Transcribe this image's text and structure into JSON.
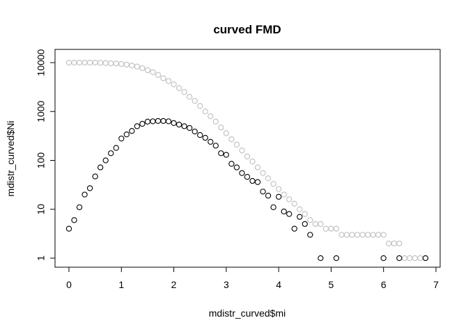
{
  "chart_data": {
    "type": "scatter",
    "title": "curved FMD",
    "xlabel": "mdistr_curved$mi",
    "ylabel": "mdistr_curved$Ni",
    "xlim": [
      -0.27,
      7.07
    ],
    "ylim": [
      1,
      10000
    ],
    "y_scale": "log",
    "grid": false,
    "x_ticks": [
      "0",
      "1",
      "2",
      "3",
      "4",
      "5",
      "6",
      "7"
    ],
    "y_ticks": [
      "1",
      "10",
      "100",
      "1000",
      "10000"
    ],
    "series": [
      {
        "color": "#bebebe",
        "points": [
          [
            0.0,
            10000
          ],
          [
            0.1,
            10000
          ],
          [
            0.2,
            10000
          ],
          [
            0.3,
            10000
          ],
          [
            0.4,
            10000
          ],
          [
            0.5,
            10000
          ],
          [
            0.6,
            9900
          ],
          [
            0.7,
            9800
          ],
          [
            0.8,
            9700
          ],
          [
            0.9,
            9600
          ],
          [
            1.0,
            9400
          ],
          [
            1.1,
            9100
          ],
          [
            1.2,
            8700
          ],
          [
            1.3,
            8300
          ],
          [
            1.4,
            7700
          ],
          [
            1.5,
            7000
          ],
          [
            1.6,
            6400
          ],
          [
            1.7,
            5600
          ],
          [
            1.8,
            4800
          ],
          [
            1.9,
            4200
          ],
          [
            2.0,
            3600
          ],
          [
            2.1,
            3000
          ],
          [
            2.2,
            2500
          ],
          [
            2.3,
            2000
          ],
          [
            2.4,
            1650
          ],
          [
            2.5,
            1300
          ],
          [
            2.6,
            1000
          ],
          [
            2.7,
            800
          ],
          [
            2.8,
            620
          ],
          [
            2.9,
            470
          ],
          [
            3.0,
            360
          ],
          [
            3.1,
            270
          ],
          [
            3.2,
            210
          ],
          [
            3.3,
            160
          ],
          [
            3.4,
            120
          ],
          [
            3.5,
            95
          ],
          [
            3.6,
            72
          ],
          [
            3.7,
            55
          ],
          [
            3.8,
            43
          ],
          [
            3.9,
            33
          ],
          [
            4.0,
            26
          ],
          [
            4.1,
            20
          ],
          [
            4.2,
            16
          ],
          [
            4.3,
            13
          ],
          [
            4.4,
            10
          ],
          [
            4.5,
            8
          ],
          [
            4.6,
            6
          ],
          [
            4.7,
            5
          ],
          [
            4.8,
            5
          ],
          [
            4.9,
            4
          ],
          [
            5.0,
            4
          ],
          [
            5.1,
            4
          ],
          [
            5.2,
            3
          ],
          [
            5.3,
            3
          ],
          [
            5.4,
            3
          ],
          [
            5.5,
            3
          ],
          [
            5.6,
            3
          ],
          [
            5.7,
            3
          ],
          [
            5.8,
            3
          ],
          [
            5.9,
            3
          ],
          [
            6.0,
            3
          ],
          [
            6.1,
            2
          ],
          [
            6.2,
            2
          ],
          [
            6.3,
            2
          ],
          [
            6.4,
            1
          ],
          [
            6.5,
            1
          ],
          [
            6.6,
            1
          ],
          [
            6.7,
            1
          ],
          [
            6.8,
            1
          ]
        ]
      },
      {
        "color": "#000000",
        "points": [
          [
            0.0,
            4
          ],
          [
            0.1,
            6
          ],
          [
            0.2,
            11
          ],
          [
            0.3,
            20
          ],
          [
            0.4,
            27
          ],
          [
            0.5,
            47
          ],
          [
            0.6,
            72
          ],
          [
            0.7,
            100
          ],
          [
            0.8,
            140
          ],
          [
            0.9,
            180
          ],
          [
            1.0,
            280
          ],
          [
            1.1,
            340
          ],
          [
            1.2,
            400
          ],
          [
            1.3,
            500
          ],
          [
            1.4,
            560
          ],
          [
            1.5,
            620
          ],
          [
            1.6,
            630
          ],
          [
            1.7,
            640
          ],
          [
            1.8,
            640
          ],
          [
            1.9,
            630
          ],
          [
            2.0,
            580
          ],
          [
            2.1,
            540
          ],
          [
            2.2,
            500
          ],
          [
            2.3,
            460
          ],
          [
            2.4,
            390
          ],
          [
            2.5,
            330
          ],
          [
            2.6,
            290
          ],
          [
            2.7,
            240
          ],
          [
            2.8,
            200
          ],
          [
            2.9,
            140
          ],
          [
            3.0,
            130
          ],
          [
            3.1,
            85
          ],
          [
            3.2,
            72
          ],
          [
            3.3,
            55
          ],
          [
            3.4,
            46
          ],
          [
            3.5,
            38
          ],
          [
            3.6,
            36
          ],
          [
            3.7,
            23
          ],
          [
            3.8,
            19
          ],
          [
            3.9,
            11
          ],
          [
            4.0,
            18
          ],
          [
            4.1,
            9
          ],
          [
            4.2,
            8
          ],
          [
            4.3,
            4
          ],
          [
            4.4,
            7
          ],
          [
            4.5,
            5
          ],
          [
            4.6,
            3
          ],
          [
            4.8,
            1
          ],
          [
            5.1,
            1
          ],
          [
            6.0,
            1
          ],
          [
            6.3,
            1
          ],
          [
            6.8,
            1
          ]
        ]
      }
    ]
  }
}
